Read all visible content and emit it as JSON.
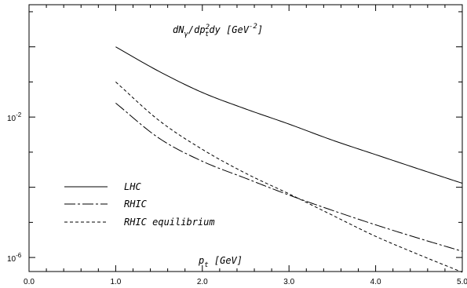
{
  "chart_data": {
    "type": "line",
    "title": "",
    "ylabel": "dN_γ/dp_t^2dy [GeV^-2]",
    "xlabel": "p_t [GeV]",
    "xlim": [
      0.0,
      5.0
    ],
    "ylim_log10": [
      -6.4,
      1.2
    ],
    "y_scale": "log",
    "grid": false,
    "legend_position": "lower-left",
    "x_ticks": [
      {
        "value": 0.0,
        "label": "0.0"
      },
      {
        "value": 1.0,
        "label": "1.0"
      },
      {
        "value": 2.0,
        "label": "2.0"
      },
      {
        "value": 3.0,
        "label": "3.0"
      },
      {
        "value": 4.0,
        "label": "4.0"
      },
      {
        "value": 5.0,
        "label": "5.0"
      }
    ],
    "y_major_ticks": [
      {
        "value": 0.01,
        "label": "10",
        "exponent": "-2"
      },
      {
        "value": 1e-06,
        "label": "10",
        "exponent": "-6"
      }
    ],
    "series": [
      {
        "name": "LHC",
        "style": "solid",
        "x": [
          1.0,
          1.5,
          2.0,
          2.5,
          3.0,
          3.5,
          4.0,
          4.5,
          5.0
        ],
        "y": [
          1.0,
          0.2,
          0.05,
          0.017,
          0.0063,
          0.0022,
          0.00085,
          0.00033,
          0.00013
        ]
      },
      {
        "name": "RHIC",
        "style": "longdash-dot",
        "x": [
          1.0,
          1.5,
          2.0,
          2.5,
          3.0,
          3.5,
          4.0,
          4.5,
          5.0
        ],
        "y": [
          0.025,
          0.0025,
          0.00055,
          0.00018,
          6e-05,
          2.2e-05,
          8.5e-06,
          3.5e-06,
          1.5e-06
        ]
      },
      {
        "name": "RHIC equilibrium",
        "style": "dashed",
        "x": [
          1.0,
          1.5,
          2.0,
          2.5,
          3.0,
          3.5,
          4.0,
          4.5,
          5.0
        ],
        "y": [
          0.1,
          0.008,
          0.0012,
          0.00025,
          6.5e-05,
          1.6e-05,
          4e-06,
          1.2e-06,
          3.8e-07
        ]
      }
    ]
  }
}
